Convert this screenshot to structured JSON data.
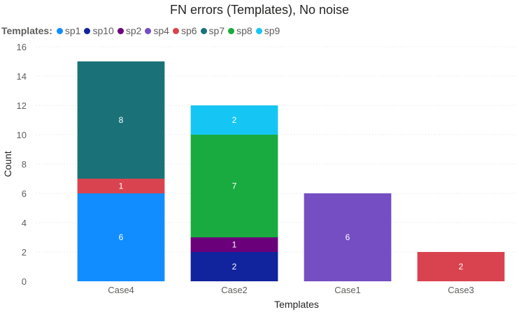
{
  "chart_data": {
    "type": "bar",
    "stacked": true,
    "title": "FN errors (Templates), No noise",
    "legend_title": "Templates:",
    "legend_position": "top-left",
    "xlabel": "Templates",
    "ylabel": "Count",
    "ylim": [
      0,
      16
    ],
    "yticks": [
      0,
      2,
      4,
      6,
      8,
      10,
      12,
      14,
      16
    ],
    "grid": true,
    "categories": [
      "Case4",
      "Case2",
      "Case1",
      "Case3"
    ],
    "series": [
      {
        "name": "sp1",
        "color": "#118DFF",
        "values": [
          6,
          0,
          0,
          0
        ]
      },
      {
        "name": "sp10",
        "color": "#12239E",
        "values": [
          0,
          2,
          0,
          0
        ]
      },
      {
        "name": "sp2",
        "color": "#6B007B",
        "values": [
          0,
          1,
          0,
          0
        ]
      },
      {
        "name": "sp4",
        "color": "#744EC2",
        "values": [
          0,
          0,
          6,
          0
        ]
      },
      {
        "name": "sp6",
        "color": "#D9434F",
        "values": [
          1,
          0,
          0,
          2
        ]
      },
      {
        "name": "sp7",
        "color": "#1A7278",
        "values": [
          8,
          0,
          0,
          0
        ]
      },
      {
        "name": "sp8",
        "color": "#1AAB40",
        "values": [
          0,
          7,
          0,
          0
        ]
      },
      {
        "name": "sp9",
        "color": "#15C6F4",
        "values": [
          0,
          2,
          0,
          0
        ]
      }
    ]
  }
}
